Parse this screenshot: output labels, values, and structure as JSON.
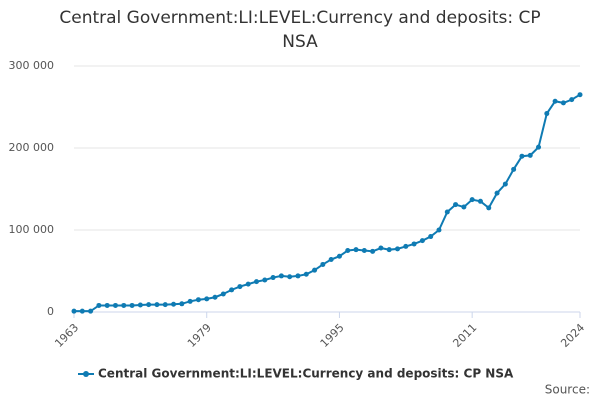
{
  "chart_data": {
    "type": "line",
    "title": "Central Government:LI:LEVEL:Currency and deposits: CP NSA",
    "x": [
      1963,
      1964,
      1965,
      1966,
      1967,
      1968,
      1969,
      1970,
      1971,
      1972,
      1973,
      1974,
      1975,
      1976,
      1977,
      1978,
      1979,
      1980,
      1981,
      1982,
      1983,
      1984,
      1985,
      1986,
      1987,
      1988,
      1989,
      1990,
      1991,
      1992,
      1993,
      1994,
      1995,
      1996,
      1997,
      1998,
      1999,
      2000,
      2001,
      2002,
      2003,
      2004,
      2005,
      2006,
      2007,
      2008,
      2009,
      2010,
      2011,
      2012,
      2013,
      2014,
      2015,
      2016,
      2017,
      2018,
      2019,
      2020,
      2021,
      2022,
      2023,
      2024
    ],
    "series": [
      {
        "name": "Central Government:LI:LEVEL:Currency and deposits: CP NSA",
        "color": "#0f7bb3",
        "values": [
          1000,
          1000,
          1000,
          8000,
          8000,
          8000,
          8000,
          8000,
          8500,
          9000,
          9000,
          9000,
          9500,
          10000,
          13000,
          15000,
          16000,
          18000,
          22000,
          27000,
          31000,
          34000,
          37000,
          39000,
          42000,
          44000,
          43000,
          44000,
          46000,
          51000,
          58000,
          64000,
          68000,
          75000,
          76000,
          75000,
          74000,
          78000,
          76000,
          77000,
          80000,
          83000,
          87000,
          92000,
          100000,
          122000,
          131000,
          128000,
          137000,
          135000,
          127000,
          145000,
          156000,
          174000,
          190000,
          191000,
          201000,
          242000,
          257000,
          255000,
          259000,
          265000
        ]
      }
    ],
    "xlim": [
      1963,
      2024
    ],
    "xticks": [
      1963,
      1979,
      1995,
      2011,
      2024
    ],
    "ylim": [
      0,
      300000
    ],
    "yticks": [
      0,
      {
        "value": 100000,
        "label": "100 000"
      },
      {
        "value": 200000,
        "label": "200 000"
      },
      {
        "value": 300000,
        "label": "300 000"
      }
    ],
    "grid": true,
    "source": "Source:"
  }
}
